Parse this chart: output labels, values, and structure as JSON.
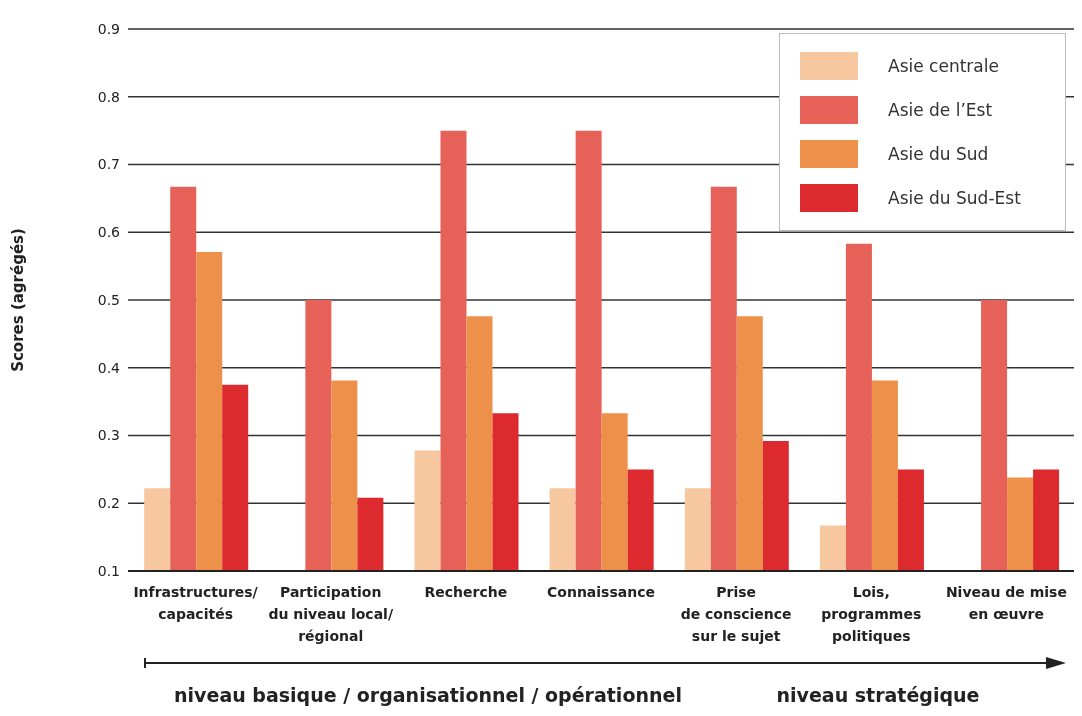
{
  "chart_data": {
    "type": "bar",
    "ylabel": "Scores (agrégés)",
    "categories": [
      "Infrastructures/\ncapacités",
      "Participation\ndu niveau local/\nrégional",
      "Recherche",
      "Connaissance",
      "Prise\nde conscience\nsur le sujet",
      "Lois,\nprogrammes\npolitiques",
      "Niveau de mise\nen œuvre"
    ],
    "series": [
      {
        "name": "Asie centrale",
        "color": "#f7c8a0",
        "values": [
          0.222,
          null,
          0.278,
          0.222,
          0.222,
          0.167,
          null
        ]
      },
      {
        "name": "Asie de l’Est",
        "color": "#e66258",
        "values": [
          0.667,
          0.5,
          0.75,
          0.75,
          0.667,
          0.583,
          0.5
        ]
      },
      {
        "name": "Asie du Sud",
        "color": "#ed914a",
        "values": [
          0.571,
          0.381,
          0.476,
          0.333,
          0.476,
          0.381,
          0.238
        ]
      },
      {
        "name": "Asie du Sud-Est",
        "color": "#dc2a2e",
        "values": [
          0.375,
          0.208,
          0.333,
          0.25,
          0.292,
          0.25,
          0.25
        ]
      }
    ],
    "ylim": [
      0.1,
      0.9
    ],
    "yticks": [
      0.1,
      0.2,
      0.3,
      0.4,
      0.5,
      0.6,
      0.7,
      0.8,
      0.9
    ],
    "grid": "y",
    "legend": "top right",
    "annotations": [
      "niveau basique / organisationnel / opérationnel",
      "niveau stratégique"
    ]
  }
}
